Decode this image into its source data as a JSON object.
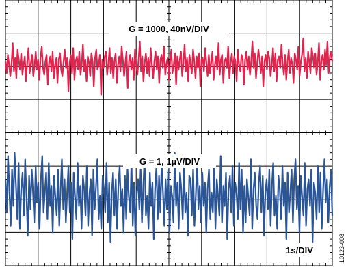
{
  "chart_data": {
    "type": "line",
    "grid": true,
    "x_divisions": 10,
    "y_divisions": 8,
    "horizontal_scale": "1s/DIV",
    "figure_id": "10123-008",
    "traces": [
      {
        "label": "G = 1000, 40nV/DIV",
        "color": "#e0244e",
        "unit": "nV",
        "volts_per_div": 40,
        "center_div": 2.0,
        "values": [
          6,
          -8,
          14,
          2,
          -12,
          4,
          28,
          -6,
          10,
          -14,
          20,
          8,
          -4,
          16,
          -10,
          2,
          12,
          -18,
          6,
          22,
          -8,
          4,
          14,
          -12,
          0,
          18,
          -4,
          8,
          -16,
          10,
          24,
          -2,
          -10,
          6,
          14,
          -22,
          4,
          12,
          -6,
          18,
          -14,
          2,
          10,
          -20,
          8,
          16,
          -4,
          -12,
          6,
          20,
          -2,
          10,
          -30,
          4,
          14,
          -8,
          22,
          -16,
          6,
          12,
          -4,
          18,
          -10,
          2,
          26,
          -6,
          8,
          -18,
          12,
          4,
          -12,
          16,
          6,
          -24,
          10,
          20,
          -4,
          2,
          14,
          -34,
          8,
          -2,
          12,
          18,
          -10,
          4,
          22,
          -8,
          10,
          -14,
          6,
          16,
          -20,
          2,
          12,
          -6,
          24,
          8,
          -12,
          4,
          18,
          -26,
          6,
          14,
          -4,
          10,
          -16,
          20,
          2,
          -10,
          8,
          30,
          -6,
          12,
          -18,
          4,
          16,
          -8,
          10,
          -12,
          22,
          2,
          -14,
          6,
          18,
          -4,
          12,
          -20,
          8,
          14,
          -2,
          24,
          -10,
          4,
          10,
          -16,
          6,
          20,
          -8,
          2,
          16,
          -22,
          12,
          -4,
          8,
          18,
          -12,
          4,
          26,
          -6,
          10,
          -18,
          14,
          2,
          -8,
          20,
          6,
          -14,
          12,
          -2,
          16,
          -24,
          8,
          10,
          -6,
          22,
          4,
          -12,
          14,
          -8,
          6,
          18,
          -16,
          2,
          12,
          -4,
          28,
          -10,
          8,
          14,
          -20,
          6,
          10,
          -2,
          24,
          -14,
          4,
          16,
          -8,
          12,
          6,
          -18,
          20,
          2,
          -6,
          14,
          10,
          -22,
          8,
          18,
          -4,
          12,
          -10,
          6,
          30,
          -2,
          16,
          -14,
          4,
          20,
          8,
          -8,
          12,
          -24,
          6,
          14,
          -4,
          18,
          10,
          -12,
          2,
          22,
          -6,
          16,
          -18,
          8,
          12,
          -2,
          26,
          4,
          -10,
          14,
          -16,
          6,
          20,
          -8,
          10,
          2,
          -20,
          16,
          8,
          -4,
          24,
          -12,
          6,
          14,
          34,
          -6,
          10,
          -14,
          18,
          4,
          -8,
          22,
          12,
          -2,
          16,
          -10,
          6,
          28,
          -16,
          8,
          14,
          -4,
          20,
          2,
          30,
          -8,
          12,
          18,
          6
        ]
      },
      {
        "label": "G = 1, 1µV/DIV",
        "color": "#2a5597",
        "unit": "µV",
        "volts_per_div": 1,
        "center_div": -2.0,
        "values": [
          0.6,
          -0.4,
          1.3,
          0.2,
          -0.8,
          0.9,
          -0.2,
          1.4,
          0.4,
          -0.6,
          1.1,
          -0.9,
          0.3,
          0.8,
          -0.5,
          1.2,
          0.1,
          -1.1,
          0.7,
          -0.3,
          0.9,
          0.2,
          -0.7,
          1.0,
          -0.1,
          0.5,
          -0.9,
          0.6,
          1.3,
          -0.4,
          0.2,
          0.8,
          -0.6,
          1.1,
          -0.2,
          0.4,
          -1.0,
          0.7,
          0.1,
          -0.5,
          0.9,
          -0.8,
          0.3,
          1.2,
          -0.3,
          0.6,
          -0.7,
          0.2,
          1.0,
          -0.4,
          0.5,
          -1.2,
          0.8,
          0.1,
          -0.6,
          1.1,
          -0.2,
          0.4,
          -0.9,
          0.7,
          0.3,
          -0.5,
          1.0,
          -0.8,
          0.2,
          0.6,
          -1.1,
          0.9,
          -0.3,
          0.4,
          1.2,
          -0.6,
          0.1,
          -0.9,
          0.7,
          0.3,
          -0.4,
          1.1,
          -0.7,
          0.5,
          -1.3,
          0.2,
          0.8,
          -0.5,
          0.6,
          -0.9,
          0.4,
          1.0,
          -0.2,
          0.3,
          -1.0,
          0.7,
          -0.6,
          0.9,
          0.1,
          -0.4,
          1.2,
          -0.8,
          0.5,
          -1.1,
          0.2,
          0.6,
          -0.3,
          0.9,
          -0.7,
          0.4,
          1.3,
          -0.5,
          0.1,
          -0.9,
          0.8,
          -0.2,
          0.5,
          -1.2,
          0.3,
          1.0,
          -0.6,
          0.7,
          -0.4,
          1.1,
          0.2,
          -0.8,
          0.6,
          -0.3,
          0.9,
          -1.0,
          0.4,
          0.1,
          -0.7,
          1.4,
          -0.2,
          0.5,
          -0.9,
          0.8,
          0.3,
          -0.6,
          1.0,
          -0.4,
          0.2,
          -1.1,
          0.7,
          0.6,
          -0.5,
          0.9,
          -0.8,
          0.1,
          1.2,
          -0.3,
          0.4,
          -0.7,
          0.8,
          -0.2,
          0.5,
          -1.0,
          0.3,
          0.9,
          -0.6,
          0.2,
          -0.4,
          1.1,
          -0.9,
          0.6,
          0.1,
          -0.5,
          1.3,
          -0.7,
          0.4,
          -0.2,
          0.8,
          -1.2,
          0.3,
          0.7,
          -0.4,
          1.0,
          -0.8,
          0.5,
          0.2,
          -0.6,
          1.1,
          -0.3,
          0.9,
          -1.0,
          0.4,
          -0.7,
          0.6,
          0.1,
          -0.5,
          1.2,
          -0.9,
          0.3,
          0.8,
          -0.2,
          -0.6,
          0.5,
          1.0,
          -0.4,
          0.7,
          -1.1,
          0.2,
          0.6,
          -0.3,
          0.9,
          -0.8,
          0.4,
          1.1,
          -0.5,
          0.1,
          -0.9,
          0.7,
          0.3,
          -0.6,
          1.0,
          -0.2,
          0.5,
          -1.2,
          0.8,
          -0.4,
          0.2,
          0.9,
          -0.7,
          0.6,
          1.2,
          -0.3,
          0.4,
          -1.0,
          0.7,
          0.1,
          -0.5,
          1.1,
          -0.8,
          0.3,
          0.6,
          -0.2,
          0.9,
          -1.3,
          0.5,
          0.2,
          -0.6,
          1.0,
          -0.4,
          0.8,
          -0.9,
          0.3,
          1.2,
          -0.1,
          0.6,
          -0.7,
          0.4,
          0.9,
          -0.5
        ]
      }
    ]
  }
}
